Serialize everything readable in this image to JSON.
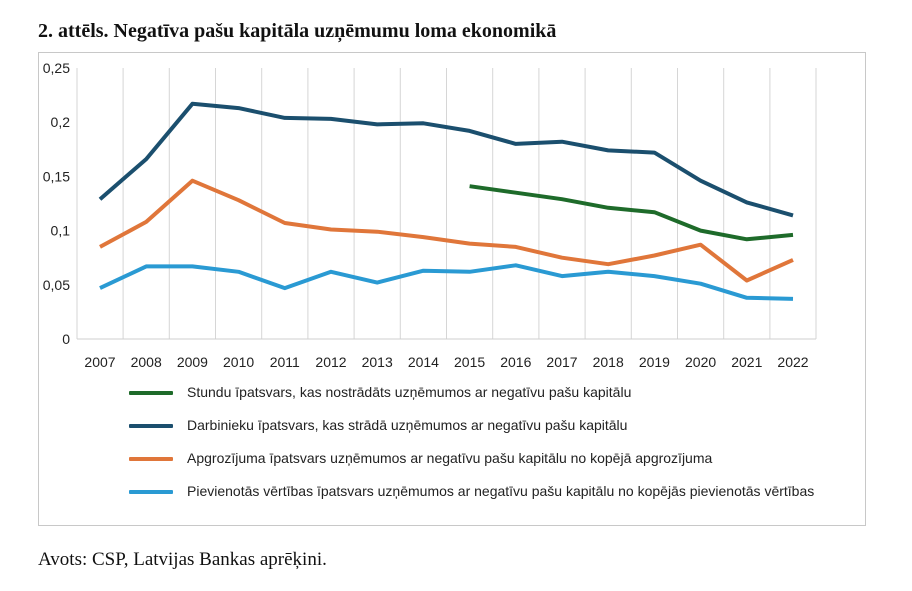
{
  "figure": {
    "title": "2. attēls. Negatīva pašu kapitāla uzņēmumu loma ekonomikā",
    "source": "Avots: CSP, Latvijas Bankas aprēķini."
  },
  "chart_data": {
    "type": "line",
    "title": "",
    "xlabel": "",
    "ylabel": "",
    "x": [
      "2007",
      "2008",
      "2009",
      "2010",
      "2011",
      "2012",
      "2013",
      "2014",
      "2015",
      "2016",
      "2017",
      "2018",
      "2019",
      "2020",
      "2021",
      "2022"
    ],
    "ylim": [
      0,
      0.25
    ],
    "yticks": [
      0,
      0.05,
      0.1,
      0.15,
      0.2,
      0.25
    ],
    "ytick_labels": [
      "0",
      "0,05",
      "0,1",
      "0,15",
      "0,2",
      "0,25"
    ],
    "grid": "vertical",
    "legend_position": "bottom",
    "series": [
      {
        "name": "Stundu īpatsvars, kas nostrādāts uzņēmumos ar negatīvu pašu kapitālu",
        "color": "#1e6b2a",
        "values": [
          null,
          null,
          null,
          null,
          null,
          null,
          null,
          null,
          0.141,
          0.135,
          0.129,
          0.121,
          0.117,
          0.1,
          0.092,
          0.096
        ]
      },
      {
        "name": "Darbinieku īpatsvars, kas strādā uzņēmumos ar negatīvu pašu kapitālu",
        "color": "#1b4f6e",
        "values": [
          0.129,
          0.166,
          0.217,
          0.213,
          0.204,
          0.203,
          0.198,
          0.199,
          0.192,
          0.18,
          0.182,
          0.174,
          0.172,
          0.146,
          0.126,
          0.114
        ]
      },
      {
        "name": "Apgrozījuma īpatsvars uzņēmumos ar negatīvu pašu kapitālu no kopējā apgrozījuma",
        "color": "#e0763a",
        "values": [
          0.085,
          0.108,
          0.146,
          0.128,
          0.107,
          0.101,
          0.099,
          0.094,
          0.088,
          0.085,
          0.075,
          0.069,
          0.077,
          0.087,
          0.054,
          0.073
        ]
      },
      {
        "name": "Pievienotās vērtības īpatsvars uzņēmumos ar negatīvu pašu kapitālu no kopējās pievienotās vērtības",
        "color": "#2a9ad3",
        "values": [
          0.047,
          0.067,
          0.067,
          0.062,
          0.047,
          0.062,
          0.052,
          0.063,
          0.062,
          0.068,
          0.058,
          0.062,
          0.058,
          0.051,
          0.038,
          0.037
        ]
      }
    ]
  }
}
